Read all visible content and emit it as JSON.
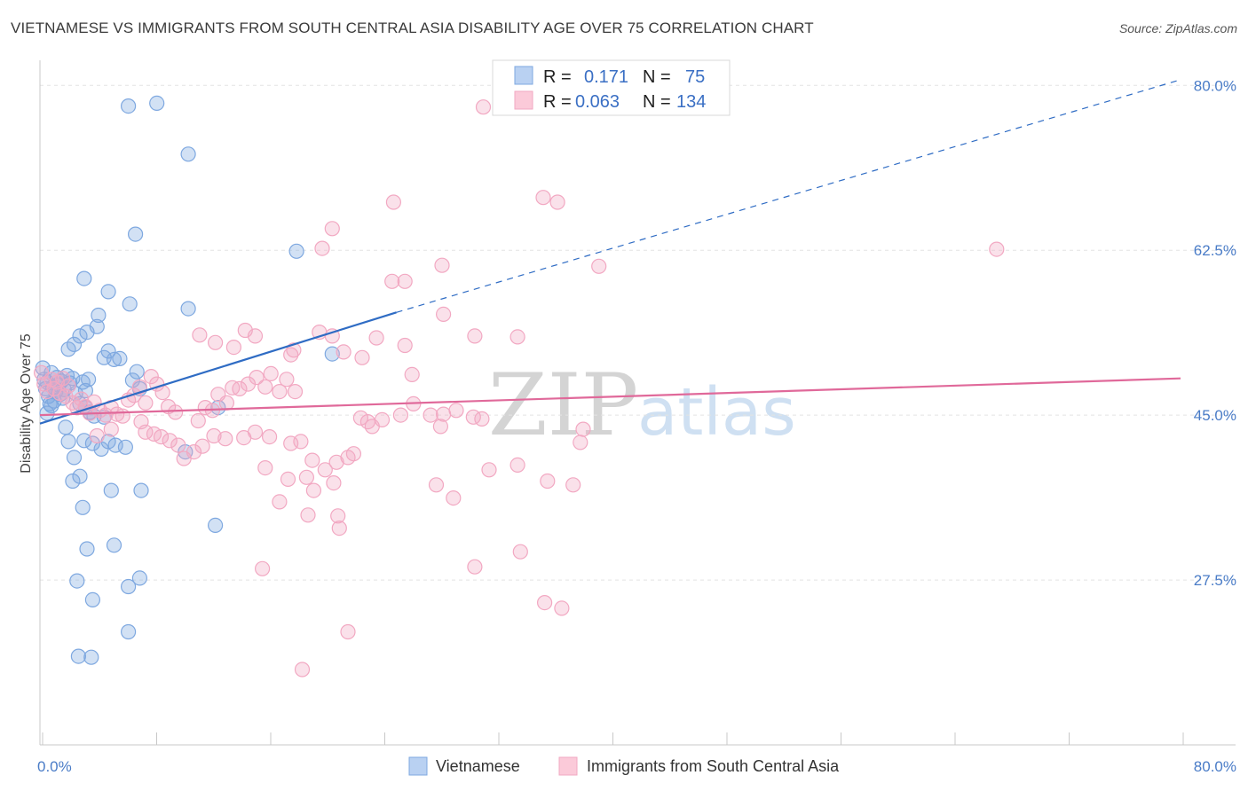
{
  "title": "VIETNAMESE VS IMMIGRANTS FROM SOUTH CENTRAL ASIA DISABILITY AGE OVER 75 CORRELATION CHART",
  "source": "Source: ZipAtlas.com",
  "watermark": {
    "zip": "ZIP",
    "atlas": "atlas"
  },
  "chart_data": {
    "type": "scatter",
    "title": "VIETNAMESE VS IMMIGRANTS FROM SOUTH CENTRAL ASIA DISABILITY AGE OVER 75 CORRELATION CHART",
    "xlabel": "",
    "ylabel": "Disability Age Over 75",
    "xlim": [
      0,
      80
    ],
    "ylim": [
      10,
      82
    ],
    "x_tick_labels": [
      {
        "value": 0,
        "label": "0.0%"
      },
      {
        "value": 80,
        "label": "80.0%"
      }
    ],
    "y_tick_labels": [
      {
        "value": 27.5,
        "label": "27.5%"
      },
      {
        "value": 45.0,
        "label": "45.0%"
      },
      {
        "value": 62.5,
        "label": "62.5%"
      },
      {
        "value": 80.0,
        "label": "80.0%"
      }
    ],
    "grid": "horizontal dashed",
    "legend": {
      "position": "top-center",
      "entries": [
        {
          "name": "Vietnamese",
          "r_label": "R =",
          "r_value": "0.171",
          "n_label": "N =",
          "n_value": "75"
        },
        {
          "name": "Immigrants from South Central Asia",
          "r_label": "R =",
          "r_value": "0.063",
          "n_label": "N =",
          "n_value": "134"
        }
      ]
    },
    "series": [
      {
        "name": "Vietnamese",
        "color": "#7ea8e0",
        "line_color": "#2f6cc4",
        "trend": {
          "x0": 0,
          "y0": 44.1,
          "x1": 25,
          "y1": 55.9,
          "dashed_to_x": 80,
          "dashed_to_y": 80.6
        },
        "points": [
          [
            0.2,
            50.0
          ],
          [
            0.3,
            48.8
          ],
          [
            0.4,
            47.8
          ],
          [
            0.5,
            48.5
          ],
          [
            0.6,
            47.0
          ],
          [
            0.7,
            46.2
          ],
          [
            0.8,
            49.5
          ],
          [
            0.9,
            48.0
          ],
          [
            1.0,
            46.5
          ],
          [
            1.1,
            47.5
          ],
          [
            1.2,
            49.0
          ],
          [
            1.3,
            48.2
          ],
          [
            1.4,
            47.2
          ],
          [
            1.5,
            48.6
          ],
          [
            1.6,
            46.8
          ],
          [
            1.7,
            47.7
          ],
          [
            0.5,
            45.2
          ],
          [
            0.8,
            46.0
          ],
          [
            1.9,
            49.2
          ],
          [
            2.1,
            48.4
          ],
          [
            2.3,
            48.9
          ],
          [
            2.5,
            47.3
          ],
          [
            2.8,
            46.2
          ],
          [
            3.0,
            48.5
          ],
          [
            3.2,
            47.6
          ],
          [
            3.4,
            48.8
          ],
          [
            1.8,
            43.7
          ],
          [
            2.0,
            42.2
          ],
          [
            2.4,
            40.5
          ],
          [
            2.3,
            38.0
          ],
          [
            2.8,
            38.5
          ],
          [
            3.2,
            45.8
          ],
          [
            3.5,
            45.3
          ],
          [
            3.8,
            44.9
          ],
          [
            3.1,
            42.3
          ],
          [
            3.7,
            42.0
          ],
          [
            4.3,
            41.4
          ],
          [
            4.5,
            44.8
          ],
          [
            4.8,
            42.2
          ],
          [
            5.3,
            41.8
          ],
          [
            6.0,
            41.6
          ],
          [
            2.4,
            52.5
          ],
          [
            2.0,
            52.0
          ],
          [
            2.8,
            53.4
          ],
          [
            4.5,
            51.1
          ],
          [
            4.8,
            51.8
          ],
          [
            5.2,
            50.9
          ],
          [
            5.6,
            51.0
          ],
          [
            6.8,
            49.6
          ],
          [
            6.5,
            48.7
          ],
          [
            7.0,
            47.8
          ],
          [
            3.3,
            53.8
          ],
          [
            4.0,
            54.4
          ],
          [
            4.1,
            55.6
          ],
          [
            6.3,
            56.8
          ],
          [
            4.8,
            58.1
          ],
          [
            3.1,
            59.5
          ],
          [
            6.7,
            64.2
          ],
          [
            10.4,
            56.3
          ],
          [
            18.0,
            62.4
          ],
          [
            20.5,
            51.5
          ],
          [
            12.5,
            45.8
          ],
          [
            10.2,
            41.1
          ],
          [
            7.1,
            37.0
          ],
          [
            5.0,
            37.0
          ],
          [
            3.0,
            35.2
          ],
          [
            5.2,
            31.2
          ],
          [
            3.3,
            30.8
          ],
          [
            12.3,
            33.3
          ],
          [
            7.0,
            27.7
          ],
          [
            6.2,
            26.8
          ],
          [
            2.6,
            27.4
          ],
          [
            3.7,
            25.4
          ],
          [
            6.2,
            22.0
          ],
          [
            2.7,
            19.4
          ],
          [
            3.6,
            19.3
          ],
          [
            10.4,
            72.7
          ],
          [
            6.2,
            77.8
          ],
          [
            8.2,
            78.1
          ]
        ]
      },
      {
        "name": "Immigrants from South Central Asia",
        "color": "#f2a8c2",
        "line_color": "#e0699a",
        "trend": {
          "x0": 0,
          "y0": 45.0,
          "x1": 80,
          "y1": 48.9
        },
        "points": [
          [
            0.1,
            49.5
          ],
          [
            0.3,
            48.3
          ],
          [
            0.5,
            47.5
          ],
          [
            0.8,
            48.8
          ],
          [
            1.0,
            47.8
          ],
          [
            1.2,
            48.5
          ],
          [
            1.4,
            47.3
          ],
          [
            1.6,
            48.9
          ],
          [
            1.8,
            47.0
          ],
          [
            2.0,
            48.1
          ],
          [
            2.3,
            46.3
          ],
          [
            2.6,
            45.8
          ],
          [
            2.9,
            46.7
          ],
          [
            3.2,
            45.9
          ],
          [
            3.5,
            45.2
          ],
          [
            3.8,
            46.4
          ],
          [
            4.2,
            45.5
          ],
          [
            4.6,
            45.0
          ],
          [
            5.0,
            45.8
          ],
          [
            5.4,
            45.1
          ],
          [
            5.8,
            44.9
          ],
          [
            6.2,
            46.6
          ],
          [
            6.6,
            47.1
          ],
          [
            7.0,
            48.0
          ],
          [
            7.4,
            46.3
          ],
          [
            7.8,
            49.1
          ],
          [
            8.2,
            48.3
          ],
          [
            8.6,
            47.4
          ],
          [
            9.0,
            45.9
          ],
          [
            9.5,
            45.3
          ],
          [
            4.0,
            42.8
          ],
          [
            5.0,
            43.5
          ],
          [
            7.1,
            44.3
          ],
          [
            7.4,
            43.2
          ],
          [
            8.0,
            43.0
          ],
          [
            8.5,
            42.7
          ],
          [
            9.1,
            42.3
          ],
          [
            9.7,
            41.8
          ],
          [
            10.1,
            40.4
          ],
          [
            10.8,
            41.1
          ],
          [
            11.1,
            44.4
          ],
          [
            11.6,
            45.8
          ],
          [
            12.1,
            45.5
          ],
          [
            12.5,
            47.2
          ],
          [
            13.1,
            46.3
          ],
          [
            13.5,
            47.9
          ],
          [
            14.0,
            47.8
          ],
          [
            14.6,
            48.3
          ],
          [
            15.2,
            49.0
          ],
          [
            15.8,
            48.0
          ],
          [
            16.2,
            49.4
          ],
          [
            16.8,
            47.5
          ],
          [
            17.3,
            48.8
          ],
          [
            17.9,
            47.5
          ],
          [
            11.4,
            41.7
          ],
          [
            12.2,
            42.8
          ],
          [
            13.0,
            42.5
          ],
          [
            14.3,
            42.6
          ],
          [
            15.1,
            43.2
          ],
          [
            16.1,
            42.7
          ],
          [
            17.6,
            42.0
          ],
          [
            18.3,
            42.2
          ],
          [
            19.1,
            40.2
          ],
          [
            20.0,
            39.2
          ],
          [
            20.8,
            40.0
          ],
          [
            21.6,
            40.5
          ],
          [
            22.5,
            44.7
          ],
          [
            23.3,
            43.8
          ],
          [
            24.0,
            44.5
          ],
          [
            25.3,
            45.0
          ],
          [
            26.2,
            46.2
          ],
          [
            27.4,
            45.0
          ],
          [
            28.1,
            43.8
          ],
          [
            29.2,
            45.5
          ],
          [
            30.4,
            44.8
          ],
          [
            15.8,
            39.4
          ],
          [
            17.4,
            38.2
          ],
          [
            18.7,
            38.4
          ],
          [
            19.2,
            37.0
          ],
          [
            20.6,
            37.8
          ],
          [
            22.0,
            40.9
          ],
          [
            13.6,
            52.2
          ],
          [
            14.4,
            54.0
          ],
          [
            15.1,
            53.4
          ],
          [
            17.6,
            51.4
          ],
          [
            19.6,
            53.8
          ],
          [
            20.5,
            53.4
          ],
          [
            21.3,
            51.7
          ],
          [
            22.6,
            51.1
          ],
          [
            23.6,
            53.2
          ],
          [
            11.2,
            53.5
          ],
          [
            12.3,
            52.7
          ],
          [
            17.8,
            51.9
          ],
          [
            25.6,
            52.4
          ],
          [
            28.3,
            55.7
          ],
          [
            30.5,
            53.4
          ],
          [
            19.8,
            62.7
          ],
          [
            20.5,
            64.8
          ],
          [
            24.7,
            59.2
          ],
          [
            25.6,
            59.2
          ],
          [
            28.2,
            60.9
          ],
          [
            39.2,
            60.8
          ],
          [
            24.8,
            67.6
          ],
          [
            35.3,
            68.1
          ],
          [
            36.3,
            67.6
          ],
          [
            31.1,
            77.7
          ],
          [
            67.1,
            62.6
          ],
          [
            33.5,
            53.3
          ],
          [
            23.0,
            44.3
          ],
          [
            26.1,
            49.3
          ],
          [
            28.3,
            45.1
          ],
          [
            31.0,
            44.6
          ],
          [
            33.5,
            39.7
          ],
          [
            31.5,
            39.2
          ],
          [
            35.6,
            38.0
          ],
          [
            37.4,
            37.6
          ],
          [
            38.1,
            43.5
          ],
          [
            37.9,
            42.1
          ],
          [
            16.8,
            35.8
          ],
          [
            18.8,
            34.4
          ],
          [
            20.9,
            34.3
          ],
          [
            21.0,
            33.0
          ],
          [
            29.0,
            36.2
          ],
          [
            27.8,
            37.6
          ],
          [
            33.7,
            30.5
          ],
          [
            30.5,
            28.9
          ],
          [
            15.6,
            28.7
          ],
          [
            35.4,
            25.1
          ],
          [
            36.6,
            24.5
          ],
          [
            21.6,
            22.0
          ],
          [
            18.4,
            18.0
          ]
        ]
      }
    ]
  }
}
